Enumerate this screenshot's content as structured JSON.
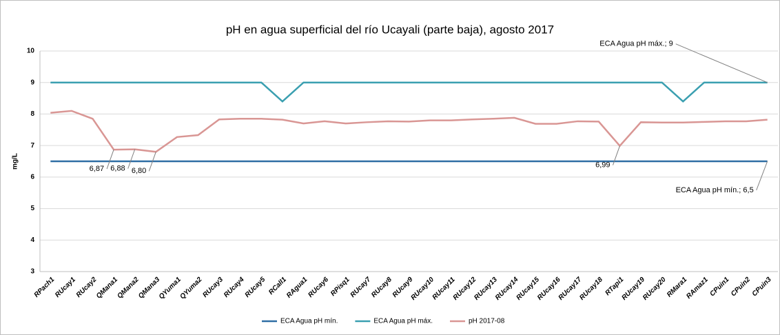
{
  "chart_data": {
    "type": "line",
    "title": "pH en agua superficial del río Ucayali (parte baja), agosto 2017",
    "ylabel": "mg/L",
    "categories": [
      "RPach1",
      "RUcay1",
      "RUcay2",
      "QMana1",
      "QMana2",
      "QMana3",
      "QYuma1",
      "QYuma2",
      "RUcay3",
      "RUcay4",
      "RUcay5",
      "RCall1",
      "RAgua1",
      "RUcay6",
      "RPisq1",
      "RUcay7",
      "RUcay8",
      "RUcay9",
      "RUcay10",
      "RUcay11",
      "RUcay12",
      "RUcay13",
      "RUcay14",
      "RUcay15",
      "RUcay16",
      "RUcay17",
      "RUcay18",
      "RTapi1",
      "RUcay19",
      "RUcay20",
      "RMara1",
      "RAmaz1",
      "CPuin1",
      "CPuin2",
      "CPuin3"
    ],
    "series": [
      {
        "name": "ECA Agua pH mín.",
        "color": "#2e6da4",
        "values": [
          6.5,
          6.5,
          6.5,
          6.5,
          6.5,
          6.5,
          6.5,
          6.5,
          6.5,
          6.5,
          6.5,
          6.5,
          6.5,
          6.5,
          6.5,
          6.5,
          6.5,
          6.5,
          6.5,
          6.5,
          6.5,
          6.5,
          6.5,
          6.5,
          6.5,
          6.5,
          6.5,
          6.5,
          6.5,
          6.5,
          6.5,
          6.5,
          6.5,
          6.5,
          6.5
        ],
        "value_labels": [
          null,
          null,
          null,
          null,
          null,
          null,
          null,
          null,
          null,
          null,
          null,
          null,
          null,
          null,
          null,
          null,
          null,
          null,
          null,
          null,
          null,
          null,
          null,
          null,
          null,
          null,
          null,
          null,
          null,
          null,
          null,
          null,
          null,
          null,
          "ECA Agua pH mín.; 6,5"
        ]
      },
      {
        "name": "ECA Agua pH máx.",
        "color": "#3a9fb0",
        "values": [
          9,
          9,
          9,
          9,
          9,
          9,
          9,
          9,
          9,
          9,
          9,
          8.4,
          9,
          9,
          9,
          9,
          9,
          9,
          9,
          9,
          9,
          9,
          9,
          9,
          9,
          9,
          9,
          9,
          9,
          9,
          8.4,
          9,
          9,
          9,
          9
        ],
        "value_labels": [
          null,
          null,
          null,
          null,
          null,
          null,
          null,
          null,
          null,
          null,
          null,
          null,
          null,
          null,
          null,
          null,
          null,
          null,
          null,
          null,
          null,
          null,
          null,
          null,
          null,
          null,
          null,
          null,
          null,
          null,
          null,
          null,
          null,
          null,
          "ECA Agua pH máx.; 9"
        ]
      },
      {
        "name": "pH 2017-08",
        "color": "#d99694",
        "values": [
          8.04,
          8.1,
          7.85,
          6.87,
          6.88,
          6.8,
          7.27,
          7.33,
          7.83,
          7.85,
          7.85,
          7.82,
          7.7,
          7.77,
          7.7,
          7.74,
          7.77,
          7.76,
          7.8,
          7.8,
          7.83,
          7.85,
          7.88,
          7.69,
          7.69,
          7.77,
          7.76,
          6.99,
          7.74,
          7.73,
          7.73,
          7.75,
          7.77,
          7.77,
          7.82
        ],
        "value_labels": [
          null,
          null,
          null,
          "6,87",
          "6,88",
          "6,80",
          null,
          null,
          null,
          null,
          null,
          null,
          null,
          null,
          null,
          null,
          null,
          null,
          null,
          null,
          null,
          null,
          null,
          null,
          null,
          null,
          null,
          "6,99",
          null,
          null,
          null,
          null,
          null,
          null,
          null
        ]
      }
    ],
    "ylim": [
      3,
      10
    ],
    "yticks": [
      3,
      4,
      5,
      6,
      7,
      8,
      9,
      10
    ],
    "grid": true,
    "legend": "bottom"
  }
}
